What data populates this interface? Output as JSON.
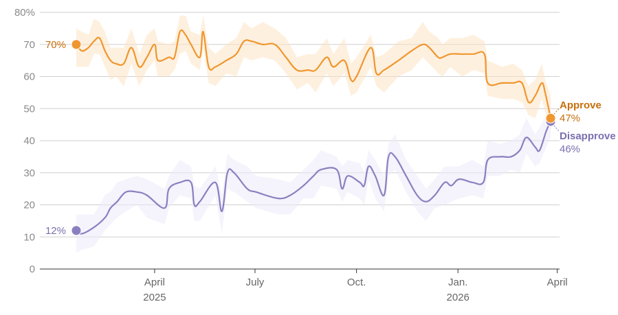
{
  "chart_data": {
    "type": "line",
    "ylim": [
      0,
      80
    ],
    "yticks": [
      {
        "value": 0,
        "label": "0"
      },
      {
        "value": 10,
        "label": "10"
      },
      {
        "value": 20,
        "label": "20"
      },
      {
        "value": 30,
        "label": "30"
      },
      {
        "value": 40,
        "label": "40"
      },
      {
        "value": 50,
        "label": "50"
      },
      {
        "value": 60,
        "label": "60"
      },
      {
        "value": 70,
        "label": "70"
      },
      {
        "value": 80,
        "label": "80%"
      }
    ],
    "xlim": [
      "2025-01-20",
      "2026-05-17"
    ],
    "xticks": [
      {
        "date": "2025-04-01",
        "label": "April",
        "sublabel": "2025"
      },
      {
        "date": "2025-07-01",
        "label": "July",
        "sublabel": ""
      },
      {
        "date": "2025-10-01",
        "label": "Oct.",
        "sublabel": ""
      },
      {
        "date": "2026-01-01",
        "label": "Jan.",
        "sublabel": "2026"
      },
      {
        "date": "2026-04-01",
        "label": "April",
        "sublabel": ""
      }
    ],
    "grid": true,
    "series": [
      {
        "name": "Approve",
        "color": "#f0962e",
        "label_color": "#c76e0c",
        "band_color": "#fde3c3",
        "start_label": "70%",
        "end_label": "47%",
        "points": [
          [
            "2025-01-20",
            70
          ],
          [
            "2025-01-25",
            68
          ],
          [
            "2025-01-31",
            69
          ],
          [
            "2025-02-05",
            71
          ],
          [
            "2025-02-10",
            72
          ],
          [
            "2025-02-15",
            68
          ],
          [
            "2025-02-20",
            65
          ],
          [
            "2025-02-25",
            64
          ],
          [
            "2025-03-04",
            64
          ],
          [
            "2025-03-11",
            69
          ],
          [
            "2025-03-18",
            63
          ],
          [
            "2025-03-25",
            66
          ],
          [
            "2025-04-01",
            70
          ],
          [
            "2025-04-04",
            65
          ],
          [
            "2025-04-14",
            66
          ],
          [
            "2025-04-19",
            66
          ],
          [
            "2025-04-24",
            74
          ],
          [
            "2025-04-29",
            73
          ],
          [
            "2025-05-04",
            70
          ],
          [
            "2025-05-12",
            66
          ],
          [
            "2025-05-15",
            74
          ],
          [
            "2025-05-20",
            63
          ],
          [
            "2025-05-26",
            63
          ],
          [
            "2025-06-05",
            65
          ],
          [
            "2025-06-14",
            67
          ],
          [
            "2025-06-21",
            71
          ],
          [
            "2025-06-28",
            71
          ],
          [
            "2025-07-08",
            70
          ],
          [
            "2025-07-19",
            70
          ],
          [
            "2025-07-29",
            66
          ],
          [
            "2025-08-08",
            62
          ],
          [
            "2025-08-18",
            62
          ],
          [
            "2025-08-25",
            62
          ],
          [
            "2025-09-04",
            66
          ],
          [
            "2025-09-10",
            63
          ],
          [
            "2025-09-20",
            65
          ],
          [
            "2025-09-26",
            59
          ],
          [
            "2025-10-01",
            60
          ],
          [
            "2025-10-14",
            69
          ],
          [
            "2025-10-19",
            61
          ],
          [
            "2025-10-26",
            62
          ],
          [
            "2025-11-08",
            65
          ],
          [
            "2025-11-20",
            68
          ],
          [
            "2025-11-30",
            70
          ],
          [
            "2025-12-06",
            69
          ],
          [
            "2025-12-14",
            66
          ],
          [
            "2025-12-18",
            66
          ],
          [
            "2025-12-25",
            67
          ],
          [
            "2026-01-05",
            67
          ],
          [
            "2026-01-15",
            67
          ],
          [
            "2026-01-25",
            67
          ],
          [
            "2026-01-28",
            58
          ],
          [
            "2026-02-10",
            58
          ],
          [
            "2026-02-20",
            58
          ],
          [
            "2026-02-28",
            58
          ],
          [
            "2026-03-06",
            52
          ],
          [
            "2026-03-12",
            54
          ],
          [
            "2026-03-18",
            58
          ],
          [
            "2026-03-21",
            55
          ],
          [
            "2026-03-26",
            47
          ]
        ]
      },
      {
        "name": "Disapprove",
        "color": "#8a7fc0",
        "label_color": "#7a6fb0",
        "band_color": "#ece9f7",
        "start_label": "12%",
        "end_label": "46%",
        "points": [
          [
            "2025-01-20",
            12
          ],
          [
            "2025-01-25",
            11
          ],
          [
            "2025-02-05",
            13
          ],
          [
            "2025-02-15",
            16
          ],
          [
            "2025-02-20",
            19
          ],
          [
            "2025-02-26",
            21
          ],
          [
            "2025-03-06",
            24
          ],
          [
            "2025-03-16",
            24
          ],
          [
            "2025-03-25",
            23
          ],
          [
            "2025-04-10",
            19
          ],
          [
            "2025-04-14",
            25
          ],
          [
            "2025-04-24",
            27
          ],
          [
            "2025-05-04",
            27
          ],
          [
            "2025-05-07",
            20
          ],
          [
            "2025-05-12",
            21
          ],
          [
            "2025-05-26",
            27
          ],
          [
            "2025-06-01",
            18
          ],
          [
            "2025-06-06",
            30
          ],
          [
            "2025-06-12",
            30
          ],
          [
            "2025-06-24",
            25
          ],
          [
            "2025-07-02",
            24
          ],
          [
            "2025-07-22",
            22
          ],
          [
            "2025-08-02",
            23
          ],
          [
            "2025-08-14",
            26
          ],
          [
            "2025-08-23",
            29
          ],
          [
            "2025-08-30",
            31
          ],
          [
            "2025-09-13",
            31
          ],
          [
            "2025-09-18",
            25
          ],
          [
            "2025-09-23",
            29
          ],
          [
            "2025-10-04",
            27
          ],
          [
            "2025-10-08",
            26
          ],
          [
            "2025-10-12",
            32
          ],
          [
            "2025-10-18",
            29
          ],
          [
            "2025-10-26",
            23
          ],
          [
            "2025-10-30",
            35
          ],
          [
            "2025-11-05",
            35
          ],
          [
            "2025-11-15",
            29
          ],
          [
            "2025-11-25",
            23
          ],
          [
            "2025-12-03",
            21
          ],
          [
            "2025-12-11",
            23
          ],
          [
            "2025-12-20",
            27
          ],
          [
            "2025-12-26",
            26
          ],
          [
            "2026-01-02",
            28
          ],
          [
            "2026-01-14",
            27
          ],
          [
            "2026-01-24",
            27
          ],
          [
            "2026-01-28",
            34
          ],
          [
            "2026-02-08",
            35
          ],
          [
            "2026-02-18",
            35
          ],
          [
            "2026-02-26",
            37
          ],
          [
            "2026-03-04",
            41
          ],
          [
            "2026-03-12",
            38
          ],
          [
            "2026-03-16",
            37
          ],
          [
            "2026-03-22",
            43
          ],
          [
            "2026-03-26",
            46
          ]
        ]
      }
    ]
  }
}
